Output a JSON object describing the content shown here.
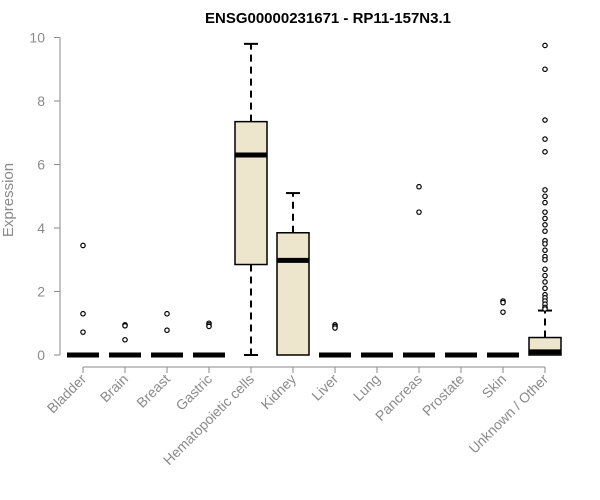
{
  "chart_data": {
    "type": "box",
    "title": "ENSG00000231671 - RP11-157N3.1",
    "ylabel": "Expression",
    "xlabel": "",
    "ylim": [
      0,
      10
    ],
    "yticks": [
      0,
      2,
      4,
      6,
      8,
      10
    ],
    "box_fill": "#eee6cc",
    "categories": [
      "Bladder",
      "Brain",
      "Breast",
      "Gastric",
      "Hematopoietic cells",
      "Kidney",
      "Liver",
      "Lung",
      "Pancreas",
      "Prostate",
      "Skin",
      "Unknown / Other"
    ],
    "boxes": [
      {
        "category": "Bladder",
        "whisker_low": 0,
        "q1": 0,
        "median": 0,
        "q3": 0,
        "whisker_high": 0,
        "outliers": [
          3.45,
          1.3,
          0.72
        ]
      },
      {
        "category": "Brain",
        "whisker_low": 0,
        "q1": 0,
        "median": 0,
        "q3": 0,
        "whisker_high": 0,
        "outliers": [
          0.95,
          0.92,
          0.48
        ]
      },
      {
        "category": "Breast",
        "whisker_low": 0,
        "q1": 0,
        "median": 0,
        "q3": 0,
        "whisker_high": 0,
        "outliers": [
          1.3,
          0.78
        ]
      },
      {
        "category": "Gastric",
        "whisker_low": 0,
        "q1": 0,
        "median": 0,
        "q3": 0,
        "whisker_high": 0,
        "outliers": [
          1.0,
          0.95,
          0.9
        ]
      },
      {
        "category": "Hematopoietic cells",
        "whisker_low": 0,
        "q1": 2.85,
        "median": 6.3,
        "q3": 7.35,
        "whisker_high": 9.8,
        "outliers": []
      },
      {
        "category": "Kidney",
        "whisker_low": 0,
        "q1": 0,
        "median": 2.98,
        "q3": 3.85,
        "whisker_high": 5.1,
        "outliers": []
      },
      {
        "category": "Liver",
        "whisker_low": 0,
        "q1": 0,
        "median": 0,
        "q3": 0,
        "whisker_high": 0,
        "outliers": [
          0.95,
          0.9,
          0.85
        ]
      },
      {
        "category": "Lung",
        "whisker_low": 0,
        "q1": 0,
        "median": 0,
        "q3": 0,
        "whisker_high": 0,
        "outliers": []
      },
      {
        "category": "Pancreas",
        "whisker_low": 0,
        "q1": 0,
        "median": 0,
        "q3": 0,
        "whisker_high": 0,
        "outliers": [
          5.3,
          4.5
        ]
      },
      {
        "category": "Prostate",
        "whisker_low": 0,
        "q1": 0,
        "median": 0,
        "q3": 0,
        "whisker_high": 0,
        "outliers": []
      },
      {
        "category": "Skin",
        "whisker_low": 0,
        "q1": 0,
        "median": 0,
        "q3": 0,
        "whisker_high": 0,
        "outliers": [
          1.7,
          1.65,
          1.35
        ]
      },
      {
        "category": "Unknown / Other",
        "whisker_low": 0,
        "q1": 0,
        "median": 0.1,
        "q3": 0.55,
        "whisker_high": 1.4,
        "outliers": [
          9.75,
          9.0,
          7.4,
          6.8,
          6.4,
          5.2,
          5.0,
          4.8,
          4.5,
          4.3,
          4.1,
          3.9,
          3.6,
          3.5,
          3.3,
          3.1,
          3.0,
          2.7,
          2.5,
          2.3,
          2.1,
          1.9,
          1.8,
          1.7,
          1.6,
          1.5,
          1.45
        ]
      }
    ]
  }
}
